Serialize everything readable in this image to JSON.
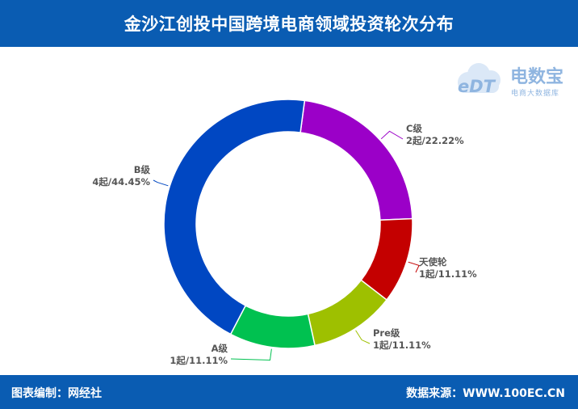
{
  "header": {
    "title": "金沙江创投中国跨境电商领域投资轮次分布"
  },
  "footer": {
    "left": "图表编制：网经社",
    "right": "数据来源：WWW.100EC.CN"
  },
  "logo": {
    "brand": "电数宝",
    "tagline": "电商大数据库",
    "badge": "eDT",
    "color": "#8fb5e0"
  },
  "chart_data": {
    "type": "pie",
    "donut": true,
    "slices": [
      {
        "name": "C级",
        "value": 2,
        "label": "2起/22.22%",
        "color": "#9b00c8"
      },
      {
        "name": "天使轮",
        "value": 1,
        "label": "1起/11.11%",
        "color": "#c40000"
      },
      {
        "name": "Pre级",
        "value": 1,
        "label": "1起/11.11%",
        "color": "#9ec000"
      },
      {
        "name": "A级",
        "value": 1,
        "label": "1起/11.11%",
        "color": "#00c150"
      },
      {
        "name": "B级",
        "value": 4,
        "label": "4起/44.45%",
        "color": "#0047c2"
      }
    ]
  }
}
